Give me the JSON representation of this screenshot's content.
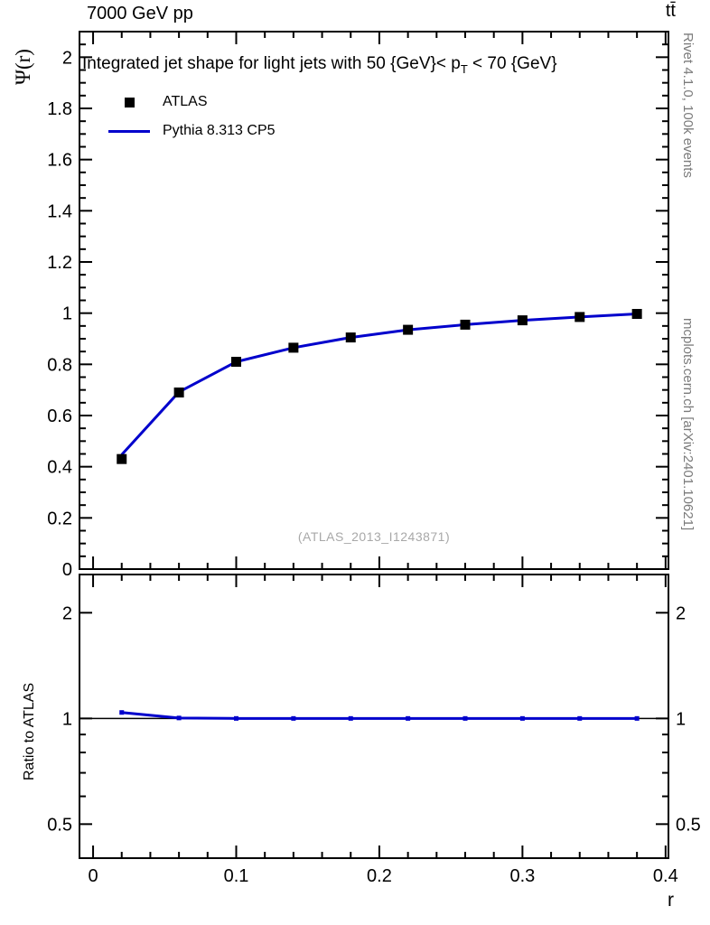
{
  "header": {
    "beam_energy": "7000 GeV pp",
    "process": "tt̄"
  },
  "right_margin": {
    "generator_info": "Rivet 4.1.0,  100k events",
    "source": "mcplots.cern.ch [arXiv:2401.10621]"
  },
  "main_panel": {
    "title_pre": "Integrated jet shape for light jets with 50 {GeV}< p",
    "title_sub": "T",
    "title_post": " < 70 {GeV}",
    "ylabel": "Ψ(r)",
    "watermark": "(ATLAS_2013_I1243871)"
  },
  "ratio_panel": {
    "ylabel": "Ratio to ATLAS"
  },
  "legend": [
    {
      "label": "ATLAS",
      "marker": "square",
      "color": "#000000"
    },
    {
      "label": "Pythia 8.313 CP5",
      "marker": "line",
      "color": "#0000cc"
    }
  ],
  "chart_data": {
    "type": "line",
    "title": "Integrated jet shape for light jets with 50 {GeV}< p_T < 70 {GeV}",
    "xlabel": "r",
    "ylabel": "Ψ(r)",
    "xlim": [
      -0.0095,
      0.402
    ],
    "ylim": [
      0,
      2.1
    ],
    "x_ticks": [
      0,
      0.1,
      0.2,
      0.3,
      0.4
    ],
    "y_ticks": [
      0,
      0.2,
      0.4,
      0.6,
      0.8,
      1,
      1.2,
      1.4,
      1.6,
      1.8,
      2
    ],
    "grid": false,
    "legend_position": "top-left",
    "x": [
      0.02,
      0.06,
      0.1,
      0.14,
      0.18,
      0.22,
      0.26,
      0.3,
      0.34,
      0.38
    ],
    "series": [
      {
        "name": "ATLAS",
        "style": "scatter",
        "marker": "square",
        "color": "#000000",
        "values": [
          0.43,
          0.69,
          0.81,
          0.865,
          0.905,
          0.935,
          0.955,
          0.972,
          0.985,
          0.997
        ]
      },
      {
        "name": "Pythia 8.313 CP5",
        "style": "line",
        "color": "#0000cc",
        "values": [
          0.447,
          0.692,
          0.81,
          0.865,
          0.905,
          0.935,
          0.955,
          0.972,
          0.985,
          0.997
        ]
      }
    ],
    "ratio": {
      "ylabel": "Ratio to ATLAS",
      "reference": "ATLAS",
      "yscale": "log",
      "ylim": [
        0.4,
        2.57
      ],
      "y_ticks": [
        0.5,
        1,
        2
      ],
      "values": [
        1.04,
        1.003,
        1.0,
        1.0,
        1.0,
        1.0,
        1.0,
        1.0,
        1.0,
        1.0
      ]
    }
  }
}
